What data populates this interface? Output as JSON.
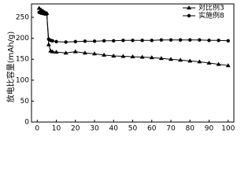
{
  "chart_data": {
    "type": "line",
    "y_label": "放电比容量(mAh/g)",
    "x": [
      1,
      2,
      3,
      4,
      5,
      6,
      7,
      8,
      10,
      15,
      20,
      25,
      30,
      35,
      40,
      45,
      50,
      55,
      60,
      65,
      70,
      75,
      80,
      85,
      90,
      95,
      100
    ],
    "series": [
      {
        "name": "对比例3",
        "color": "#000000",
        "marker": "triangle",
        "values": [
          272,
          268,
          265,
          262,
          260,
          185,
          170,
          168,
          167,
          165,
          168,
          165,
          163,
          160,
          158,
          157,
          156,
          155,
          154,
          152,
          150,
          148,
          146,
          144,
          141,
          138,
          135
        ]
      },
      {
        "name": "实施例8",
        "color": "#000000",
        "marker": "circle",
        "values": [
          262,
          260,
          259,
          258,
          258,
          198,
          195,
          194,
          192,
          191,
          192,
          193,
          193,
          194,
          194,
          195,
          195,
          195,
          195,
          196,
          196,
          196,
          196,
          196,
          195,
          195,
          194
        ]
      }
    ],
    "xlim": [
      -3,
      103
    ],
    "xticks": [
      0,
      10,
      20,
      30,
      40,
      50,
      60,
      70,
      80,
      90,
      100
    ],
    "ylim": [
      0,
      282
    ],
    "yticks": [
      0,
      50,
      100,
      150,
      200,
      250
    ],
    "legend": "upper right"
  }
}
